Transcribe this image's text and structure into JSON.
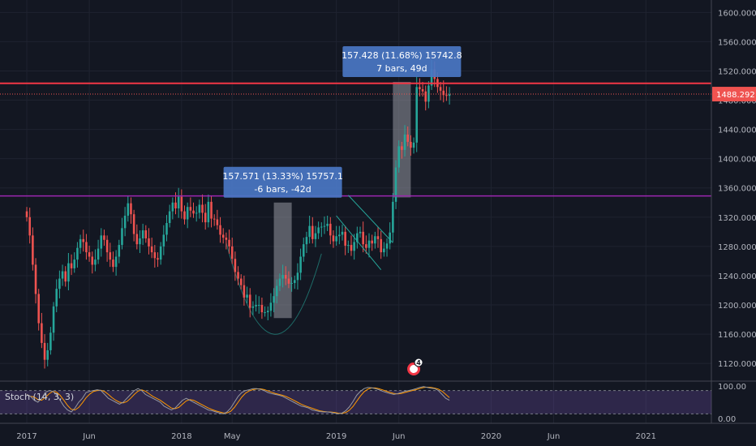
{
  "chart_data": {
    "type": "candlestick",
    "price_axis": {
      "ticks": [
        "1600.000",
        "1560.000",
        "1520.000",
        "1480.000",
        "1440.000",
        "1400.000",
        "1360.000",
        "1320.000",
        "1280.000",
        "1240.000",
        "1200.000",
        "1160.000",
        "1120.000"
      ],
      "tick_values": [
        1600,
        1560,
        1520,
        1480,
        1440,
        1400,
        1360,
        1320,
        1280,
        1240,
        1200,
        1160,
        1120
      ],
      "range": [
        1098,
        1617
      ]
    },
    "time_axis": {
      "labels": [
        {
          "text": "2017",
          "week": 0
        },
        {
          "text": "Jun",
          "week": 21
        },
        {
          "text": "2018",
          "week": 52
        },
        {
          "text": "May",
          "week": 69
        },
        {
          "text": "2019",
          "week": 104
        },
        {
          "text": "Jun",
          "week": 125
        },
        {
          "text": "2020",
          "week": 156
        },
        {
          "text": "Jun",
          "week": 177
        },
        {
          "text": "2021",
          "week": 208
        }
      ],
      "range": [
        -9,
        230
      ]
    },
    "last_price": {
      "label": "1488.292",
      "value": 1488.292,
      "color": "#ef5350"
    },
    "lines": {
      "resistance_red": {
        "value": 1503,
        "color": "#f23645"
      },
      "support_purple": {
        "value": 1349,
        "color": "#9c27b0"
      }
    },
    "measures": [
      {
        "line1": "157.571 (13.33%) 15757.1",
        "line2": "-6 bars, -42d",
        "from_week": 83,
        "to_week": 89,
        "from_price": 1340,
        "to_price": 1182
      },
      {
        "line1": "157.428 (11.68%) 15742.8",
        "line2": "7 bars, 49d",
        "from_week": 123,
        "to_week": 129,
        "from_price": 1347,
        "to_price": 1505
      }
    ],
    "closes": [
      1320,
      1295,
      1255,
      1215,
      1175,
      1148,
      1125,
      1138,
      1162,
      1198,
      1222,
      1236,
      1246,
      1232,
      1257,
      1250,
      1262,
      1278,
      1290,
      1286,
      1272,
      1266,
      1255,
      1262,
      1277,
      1295,
      1289,
      1272,
      1262,
      1252,
      1266,
      1282,
      1305,
      1322,
      1339,
      1324,
      1297,
      1283,
      1291,
      1302,
      1291,
      1280,
      1272,
      1264,
      1262,
      1280,
      1296,
      1312,
      1328,
      1340,
      1332,
      1348,
      1328,
      1317,
      1334,
      1329,
      1325,
      1326,
      1337,
      1326,
      1313,
      1341,
      1318,
      1317,
      1309,
      1296,
      1292,
      1289,
      1280,
      1263,
      1245,
      1236,
      1227,
      1210,
      1214,
      1196,
      1198,
      1200,
      1200,
      1190,
      1190,
      1192,
      1203,
      1212,
      1226,
      1236,
      1241,
      1236,
      1229,
      1230,
      1234,
      1244,
      1266,
      1283,
      1293,
      1308,
      1290,
      1298,
      1306,
      1307,
      1308,
      1311,
      1295,
      1287,
      1294,
      1296,
      1300,
      1281,
      1282,
      1274,
      1286,
      1298,
      1300,
      1283,
      1278,
      1288,
      1284,
      1294,
      1290,
      1272,
      1277,
      1284,
      1299,
      1341,
      1388,
      1417,
      1412,
      1433,
      1423,
      1415,
      1422,
      1498,
      1495,
      1492,
      1478,
      1500,
      1522,
      1509,
      1498,
      1493,
      1487,
      1486,
      1488
    ],
    "stoch": {
      "label": "Stoch (14, 3, 3)",
      "axis_ticks": [
        "100.00",
        "0.00"
      ],
      "upper": 80,
      "lower": 20,
      "k": [
        70,
        65,
        55,
        50,
        60,
        75,
        80,
        78,
        70,
        55,
        40,
        30,
        25,
        35,
        50,
        60,
        75,
        78,
        80,
        82,
        80,
        70,
        60,
        55,
        50,
        45,
        50,
        60,
        70,
        80,
        85,
        80,
        70,
        65,
        60,
        55,
        50,
        40,
        35,
        30,
        35,
        45,
        55,
        60,
        55,
        50,
        45,
        40,
        35,
        30,
        28,
        25,
        22,
        20,
        25,
        35,
        50,
        65,
        75,
        80,
        82,
        85,
        85,
        83,
        80,
        75,
        72,
        70,
        68,
        65,
        60,
        55,
        50,
        45,
        40,
        38,
        35,
        30,
        28,
        26,
        25,
        25,
        24,
        22,
        20,
        22,
        28,
        38,
        52,
        68,
        78,
        85,
        88,
        87,
        85,
        82,
        78,
        75,
        72,
        70,
        72,
        75,
        78,
        80,
        82,
        85,
        88,
        90,
        88,
        86,
        85,
        80,
        70,
        60,
        55
      ]
    },
    "earnings_badge": "4"
  }
}
